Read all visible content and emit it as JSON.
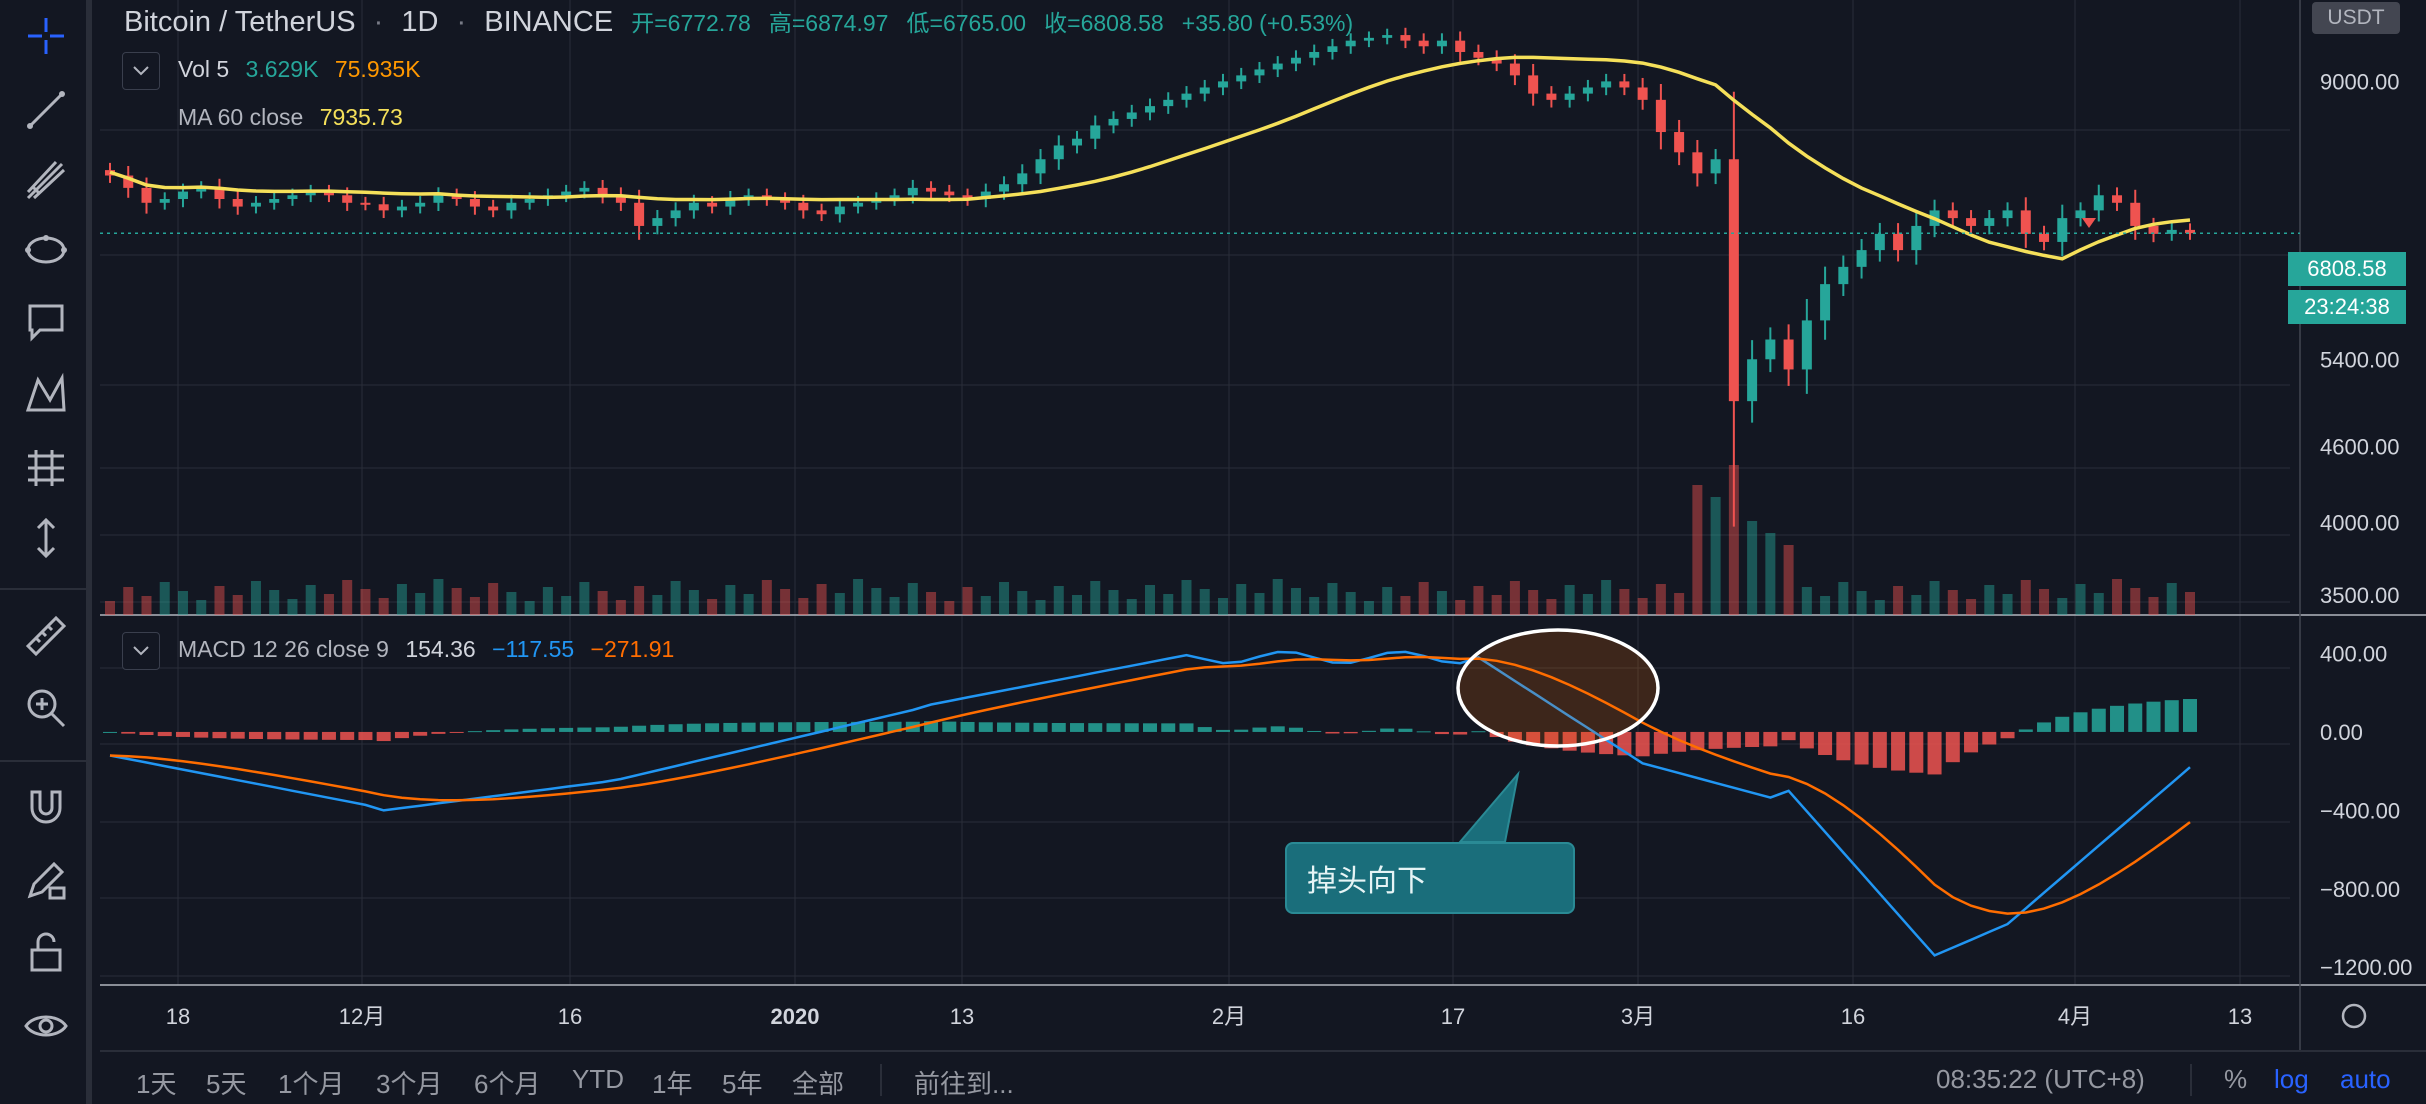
{
  "header": {
    "symbol": "Bitcoin / TetherUS",
    "interval": "1D",
    "exchange": "BINANCE",
    "open": "开=6772.78",
    "high": "高=6874.97",
    "low": "低=6765.00",
    "close": "收=6808.58",
    "change": "+35.80 (+0.53%)"
  },
  "volume_legend": {
    "name": "Vol 5",
    "v1": "3.629K",
    "v2": "75.935K"
  },
  "ma_legend": {
    "name": "MA 60 close",
    "value": "7935.73"
  },
  "macd_legend": {
    "name": "MACD 12 26 close 9",
    "v1": "154.36",
    "v2": "−117.55",
    "v3": "−271.91"
  },
  "currency_badge": "USDT",
  "last_price_badge": "6808.58",
  "countdown_badge": "23:24:38",
  "callout_text": "掉头向下",
  "price_axis_ticks": [
    "9000.00",
    "5400.00",
    "4600.00",
    "4000.00",
    "3500.00"
  ],
  "macd_axis_ticks": [
    "400.00",
    "0.00",
    "−400.00",
    "−800.00",
    "−1200.00"
  ],
  "time_axis_ticks": [
    "18",
    "12月",
    "16",
    "2020",
    "13",
    "2月",
    "17",
    "3月",
    "16",
    "4月",
    "13"
  ],
  "bottom_bar": {
    "ranges": [
      "1天",
      "5天",
      "1个月",
      "3个月",
      "6个月",
      "YTD",
      "1年",
      "5年",
      "全部"
    ],
    "goto": "前往到...",
    "clock": "08:35:22 (UTC+8)",
    "percent": "%",
    "log": "log",
    "auto": "auto"
  },
  "colors": {
    "background": "#131722",
    "up": "#26a69a",
    "down": "#ef5350",
    "ma": "#f5e05a",
    "macd_line": "#2196f3",
    "signal_line": "#ff6d00",
    "grid": "#2a2e39",
    "accent": "#2962ff"
  },
  "toolbar_icons": [
    "crosshair-icon",
    "trend-line-icon",
    "pitchfork-icon",
    "ellipse-icon",
    "text-note-icon",
    "pattern-icon",
    "prediction-icon",
    "measure-arrow-icon",
    "ruler-icon",
    "zoom-in-icon",
    "magnet-icon",
    "lock-draw-icon",
    "unlock-icon",
    "eye-icon"
  ],
  "chart_data": [
    {
      "type": "candlestick",
      "x_labels": [
        "18",
        "12月",
        "16",
        "2020",
        "13",
        "2月",
        "17",
        "3月",
        "16",
        "4月",
        "13"
      ],
      "ylim": [
        3500,
        9700
      ],
      "log_scale": true,
      "close_path": [
        7570,
        7400,
        7200,
        7250,
        7350,
        7400,
        7250,
        7150,
        7200,
        7250,
        7300,
        7350,
        7300,
        7200,
        7180,
        7100,
        7150,
        7200,
        7300,
        7250,
        7150,
        7100,
        7200,
        7250,
        7300,
        7350,
        7400,
        7300,
        7200,
        6900,
        7000,
        7100,
        7200,
        7150,
        7250,
        7300,
        7250,
        7200,
        7100,
        7050,
        7150,
        7200,
        7250,
        7300,
        7400,
        7350,
        7300,
        7250,
        7350,
        7450,
        7600,
        7800,
        8000,
        8100,
        8300,
        8400,
        8500,
        8600,
        8700,
        8800,
        8900,
        9000,
        9100,
        9200,
        9300,
        9400,
        9500,
        9600,
        9700,
        9750,
        9800,
        9700,
        9600,
        9700,
        9500,
        9400,
        9300,
        9100,
        8800,
        8700,
        8800,
        8900,
        9000,
        8900,
        8700,
        8200,
        7900,
        7600,
        7800,
        5000,
        5400,
        5600,
        5300,
        5800,
        6200,
        6400,
        6600,
        6800,
        6600,
        6900,
        7100,
        7000,
        6900,
        7000,
        7100,
        6800,
        6700,
        7000,
        7100,
        7300,
        7200,
        6900,
        6800,
        6850,
        6808.58
      ],
      "volume": "bars scaled relative; spike near mid-March",
      "ma60_close_last": 7935.73
    },
    {
      "type": "line",
      "name": "MACD 12 26 close 9",
      "ylim": [
        -1250,
        500
      ],
      "macd_last": -117.55,
      "signal_last": -271.91,
      "histogram_last": 154.36
    }
  ]
}
